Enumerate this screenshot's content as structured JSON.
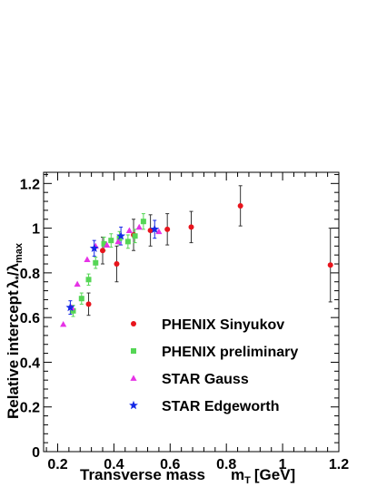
{
  "chart_data": {
    "type": "scatter",
    "xlabel": "Transverse mass",
    "xlabel_symbol": "m",
    "xlabel_sub": "T",
    "xlabel_unit": "[GeV]",
    "ylabel": "Relative intercept",
    "ylabel_ratio_num": "λ",
    "ylabel_ratio_num_sub": "*",
    "ylabel_ratio_sep": "/",
    "ylabel_ratio_den": "λ",
    "ylabel_ratio_den_sub": "max",
    "xlim": [
      0.15,
      1.2
    ],
    "ylim": [
      0,
      1.25
    ],
    "xticks": [
      0.2,
      0.4,
      0.6,
      0.8,
      1,
      1.2
    ],
    "xtick_labels": [
      "0.2",
      "0.4",
      "0.6",
      "0.8",
      "1",
      "1.2"
    ],
    "yticks": [
      0,
      0.2,
      0.4,
      0.6,
      0.8,
      1,
      1.2
    ],
    "ytick_labels": [
      "0",
      "0.2",
      "0.4",
      "0.6",
      "0.8",
      "1",
      "1.2"
    ],
    "grid": false,
    "legend_position": "lower-right",
    "series": [
      {
        "name": "PHENIX Sinyukov",
        "marker": "circle",
        "color": "#e8141c",
        "points": [
          {
            "x": 0.31,
            "y": 0.66,
            "err": 0.05
          },
          {
            "x": 0.36,
            "y": 0.9,
            "err": 0.06
          },
          {
            "x": 0.41,
            "y": 0.84,
            "err": 0.08
          },
          {
            "x": 0.47,
            "y": 0.97,
            "err": 0.07
          },
          {
            "x": 0.53,
            "y": 0.99,
            "err": 0.07
          },
          {
            "x": 0.59,
            "y": 0.995,
            "err": 0.07
          },
          {
            "x": 0.675,
            "y": 1.005,
            "err": 0.07
          },
          {
            "x": 0.85,
            "y": 1.1,
            "err": 0.09
          },
          {
            "x": 1.17,
            "y": 0.835,
            "err": 0.165
          }
        ]
      },
      {
        "name": "PHENIX preliminary",
        "marker": "square",
        "color": "#55d655",
        "points": [
          {
            "x": 0.255,
            "y": 0.63,
            "err": 0.025
          },
          {
            "x": 0.285,
            "y": 0.685,
            "err": 0.025
          },
          {
            "x": 0.31,
            "y": 0.77,
            "err": 0.025
          },
          {
            "x": 0.335,
            "y": 0.845,
            "err": 0.025
          },
          {
            "x": 0.365,
            "y": 0.93,
            "err": 0.03
          },
          {
            "x": 0.39,
            "y": 0.945,
            "err": 0.03
          },
          {
            "x": 0.42,
            "y": 0.955,
            "err": 0.03
          },
          {
            "x": 0.45,
            "y": 0.94,
            "err": 0.03
          },
          {
            "x": 0.475,
            "y": 0.965,
            "err": 0.03
          },
          {
            "x": 0.505,
            "y": 1.03,
            "err": 0.035
          }
        ]
      },
      {
        "name": "STAR Gauss",
        "marker": "triangle",
        "color": "#e632e6",
        "points": [
          {
            "x": 0.22,
            "y": 0.57
          },
          {
            "x": 0.25,
            "y": 0.645
          },
          {
            "x": 0.27,
            "y": 0.75
          },
          {
            "x": 0.305,
            "y": 0.86
          },
          {
            "x": 0.335,
            "y": 0.92
          },
          {
            "x": 0.375,
            "y": 0.925
          },
          {
            "x": 0.415,
            "y": 0.94
          },
          {
            "x": 0.455,
            "y": 0.99
          },
          {
            "x": 0.49,
            "y": 1.005
          },
          {
            "x": 0.56,
            "y": 0.985
          }
        ]
      },
      {
        "name": "STAR Edgeworth",
        "marker": "star",
        "color": "#1428e6",
        "points": [
          {
            "x": 0.245,
            "y": 0.645,
            "err": 0.03
          },
          {
            "x": 0.33,
            "y": 0.91,
            "err": 0.035
          },
          {
            "x": 0.425,
            "y": 0.965,
            "err": 0.04
          },
          {
            "x": 0.545,
            "y": 0.995,
            "err": 0.04
          }
        ]
      }
    ]
  }
}
